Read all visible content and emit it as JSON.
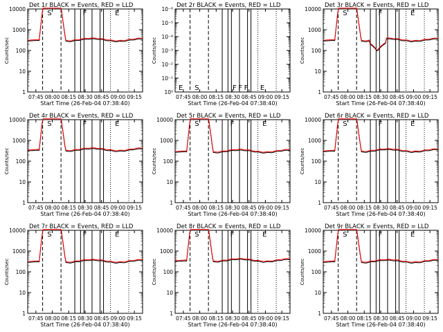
{
  "chart_data": [
    {
      "type": "line",
      "title": "Det 1r BLACK = Events, RED = LLD",
      "xlabel": "Start Time (26-Feb-04 07:38:40)",
      "ylabel": "Counts/sec",
      "yscale": "log",
      "ylim": [
        1,
        10000
      ],
      "yticks": [
        "1",
        "10",
        "100",
        "1000",
        "10000"
      ],
      "xticks": [
        "07:45",
        "08:00",
        "08:15",
        "08:30",
        "08:45",
        "09:00",
        "09:15"
      ],
      "baseline": 300,
      "attenuator_labels": [
        "S",
        "F",
        "E"
      ],
      "series": [
        {
          "name": "BLACK = Events",
          "color": "#000000"
        },
        {
          "name": "RED = LLD",
          "color": "#ff0000"
        }
      ]
    },
    {
      "type": "line",
      "title": "Det 2r BLACK = Events, RED = LLD",
      "xlabel": "Start Time (26-Feb-04 07:38:40)",
      "ylabel": "Counts/sec",
      "yscale": "log",
      "ylim": [
        1,
        1e-06
      ],
      "yticks": [
        "10⁰",
        "10⁻¹",
        "10⁻²",
        "10⁻³",
        "10⁻⁴",
        "10⁻⁵",
        "10⁻⁶"
      ],
      "xticks": [
        "07:45",
        "08:00",
        "08:15",
        "08:30",
        "08:45",
        "09:00",
        "09:15"
      ],
      "baseline": null,
      "attenuator_labels": [
        "E",
        "S",
        "F",
        "F",
        "F",
        "E"
      ],
      "series": [
        {
          "name": "BLACK = Events",
          "color": "#000000"
        },
        {
          "name": "RED = LLD",
          "color": "#ff0000"
        }
      ]
    },
    {
      "type": "line",
      "title": "Det 3r BLACK = Events, RED = LLD",
      "xlabel": "Start Time (26-Feb-04 07:38:40)",
      "ylabel": "Counts/sec",
      "yscale": "log",
      "ylim": [
        1,
        10000
      ],
      "yticks": [
        "1",
        "10",
        "100",
        "1000",
        "10000"
      ],
      "xticks": [
        "07:45",
        "08:00",
        "08:15",
        "08:30",
        "08:45",
        "09:00",
        "09:15"
      ],
      "baseline": 300,
      "attenuator_labels": [
        "S",
        "F",
        "E"
      ],
      "series": [
        {
          "name": "BLACK = Events",
          "color": "#000000"
        },
        {
          "name": "RED = LLD",
          "color": "#ff0000"
        }
      ]
    },
    {
      "type": "line",
      "title": "Det 4r BLACK = Events, RED = LLD",
      "xlabel": "Start Time (26-Feb-04 07:38:40)",
      "ylabel": "Counts/sec",
      "yscale": "log",
      "ylim": [
        1,
        10000
      ],
      "yticks": [
        "1",
        "10",
        "100",
        "1000",
        "10000"
      ],
      "xticks": [
        "07:45",
        "08:00",
        "08:15",
        "08:30",
        "08:45",
        "09:00",
        "09:15"
      ],
      "baseline": 330,
      "attenuator_labels": [
        "S",
        "F",
        "E"
      ],
      "series": [
        {
          "name": "BLACK = Events",
          "color": "#000000"
        },
        {
          "name": "RED = LLD",
          "color": "#ff0000"
        }
      ]
    },
    {
      "type": "line",
      "title": "Det 5r BLACK = Events, RED = LLD",
      "xlabel": "Start Time (26-Feb-04 07:38:40)",
      "ylabel": "Counts/sec",
      "yscale": "log",
      "ylim": [
        1,
        10000
      ],
      "yticks": [
        "1",
        "10",
        "100",
        "1000",
        "10000"
      ],
      "xticks": [
        "07:45",
        "08:00",
        "08:15",
        "08:30",
        "08:45",
        "09:00",
        "09:15"
      ],
      "baseline": 280,
      "attenuator_labels": [
        "S",
        "F",
        "E"
      ],
      "series": [
        {
          "name": "BLACK = Events",
          "color": "#000000"
        },
        {
          "name": "RED = LLD",
          "color": "#ff0000"
        }
      ]
    },
    {
      "type": "line",
      "title": "Det 6r BLACK = Events, RED = LLD",
      "xlabel": "Start Time (26-Feb-04 07:38:40)",
      "ylabel": "Counts/sec",
      "yscale": "log",
      "ylim": [
        1,
        10000
      ],
      "yticks": [
        "1",
        "10",
        "100",
        "1000",
        "10000"
      ],
      "xticks": [
        "07:45",
        "08:00",
        "08:15",
        "08:30",
        "08:45",
        "09:00",
        "09:15"
      ],
      "baseline": 300,
      "attenuator_labels": [
        "S",
        "F",
        "E"
      ],
      "series": [
        {
          "name": "BLACK = Events",
          "color": "#000000"
        },
        {
          "name": "RED = LLD",
          "color": "#ff0000"
        }
      ]
    },
    {
      "type": "line",
      "title": "Det 7r BLACK = Events, RED = LLD",
      "xlabel": "Start Time (26-Feb-04 07:38:40)",
      "ylabel": "Counts/sec",
      "yscale": "log",
      "ylim": [
        1,
        10000
      ],
      "yticks": [
        "1",
        "10",
        "100",
        "1000",
        "10000"
      ],
      "xticks": [
        "07:45",
        "08:00",
        "08:15",
        "08:30",
        "08:45",
        "09:00",
        "09:15"
      ],
      "baseline": 300,
      "attenuator_labels": [
        "S",
        "F",
        "E"
      ],
      "series": [
        {
          "name": "BLACK = Events",
          "color": "#000000"
        },
        {
          "name": "RED = LLD",
          "color": "#ff0000"
        }
      ]
    },
    {
      "type": "line",
      "title": "Det 8r BLACK = Events, RED = LLD",
      "xlabel": "Start Time (26-Feb-04 07:38:40)",
      "ylabel": "Counts/sec",
      "yscale": "log",
      "ylim": [
        1,
        10000
      ],
      "yticks": [
        "1",
        "10",
        "100",
        "1000",
        "10000"
      ],
      "xticks": [
        "07:45",
        "08:00",
        "08:15",
        "08:30",
        "08:45",
        "09:00",
        "09:15"
      ],
      "baseline": 330,
      "attenuator_labels": [
        "S",
        "F",
        "E"
      ],
      "series": [
        {
          "name": "BLACK = Events",
          "color": "#000000"
        },
        {
          "name": "RED = LLD",
          "color": "#ff0000"
        }
      ]
    },
    {
      "type": "line",
      "title": "Det 9r BLACK = Events, RED = LLD",
      "xlabel": "Start Time (26-Feb-04 07:38:40)",
      "ylabel": "Counts/sec",
      "yscale": "log",
      "ylim": [
        1,
        10000
      ],
      "yticks": [
        "1",
        "10",
        "100",
        "1000",
        "10000"
      ],
      "xticks": [
        "07:45",
        "08:00",
        "08:15",
        "08:30",
        "08:45",
        "09:00",
        "09:15"
      ],
      "baseline": 300,
      "attenuator_labels": [
        "S",
        "F",
        "E"
      ],
      "series": [
        {
          "name": "BLACK = Events",
          "color": "#000000"
        },
        {
          "name": "RED = LLD",
          "color": "#ff0000"
        }
      ]
    }
  ]
}
